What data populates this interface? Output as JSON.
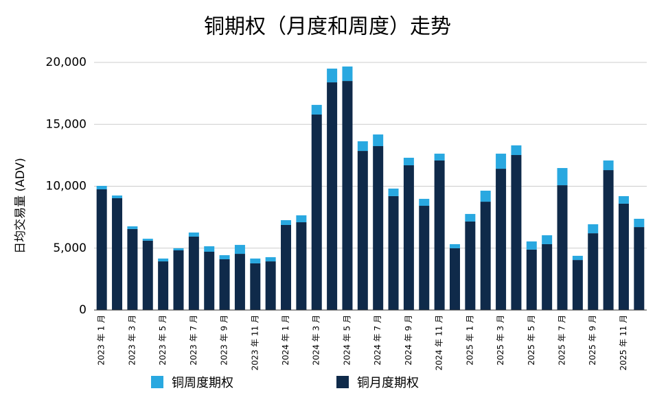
{
  "chart_data": {
    "type": "stacked_bar",
    "title": "铜期权（月度和周度）走势",
    "y_label": "日均交易量 (ADV)",
    "categories": [
      "2023 年 1 月",
      null,
      "2023 年 3 月",
      null,
      "2023 年 5 月",
      null,
      "2023 年 7 月",
      null,
      "2023 年 9 月",
      null,
      "2023 年 11 月",
      null,
      "2024 年 1 月",
      null,
      "2024 年 3 月",
      null,
      "2024 年 5 月",
      null,
      "2024 年 7 月",
      null,
      "2024 年 9 月",
      null,
      "2024 年 11 月",
      null,
      "2025 年 1 月",
      null,
      "2025 年 3 月",
      null,
      "2025 年 5 月",
      null,
      "2025 年 7 月",
      null,
      "2025 年 9 月",
      null,
      "2025 年 11 月",
      null
    ],
    "series": [
      {
        "name": "铜周度期权",
        "color": "#29a8e0",
        "values": [
          280,
          220,
          220,
          160,
          230,
          170,
          330,
          440,
          330,
          720,
          390,
          340,
          390,
          560,
          780,
          1110,
          1170,
          780,
          940,
          610,
          610,
          560,
          550,
          330,
          610,
          890,
          1220,
          780,
          660,
          720,
          1390,
          340,
          730,
          780,
          610,
          670
        ]
      },
      {
        "name": "铜月度期权",
        "color": "#0f2a4a",
        "values": [
          9750,
          9030,
          6540,
          5600,
          3930,
          4820,
          5930,
          4710,
          4100,
          4540,
          3770,
          3930,
          6870,
          7090,
          15790,
          18390,
          18500,
          12850,
          13240,
          9200,
          11690,
          8420,
          12080,
          4990,
          7150,
          8750,
          11410,
          12520,
          4880,
          5320,
          10080,
          4040,
          6200,
          11300,
          8590,
          6700
        ]
      }
    ],
    "ylim": [
      0,
      20000
    ],
    "yticks": [
      0,
      {
        "value": 5000,
        "label": "5,000"
      },
      {
        "value": 10000,
        "label": "10,000"
      },
      {
        "value": 15000,
        "label": "15,000"
      },
      {
        "value": 20000,
        "label": "20,000"
      }
    ],
    "grid": true,
    "legend": "bottom"
  }
}
